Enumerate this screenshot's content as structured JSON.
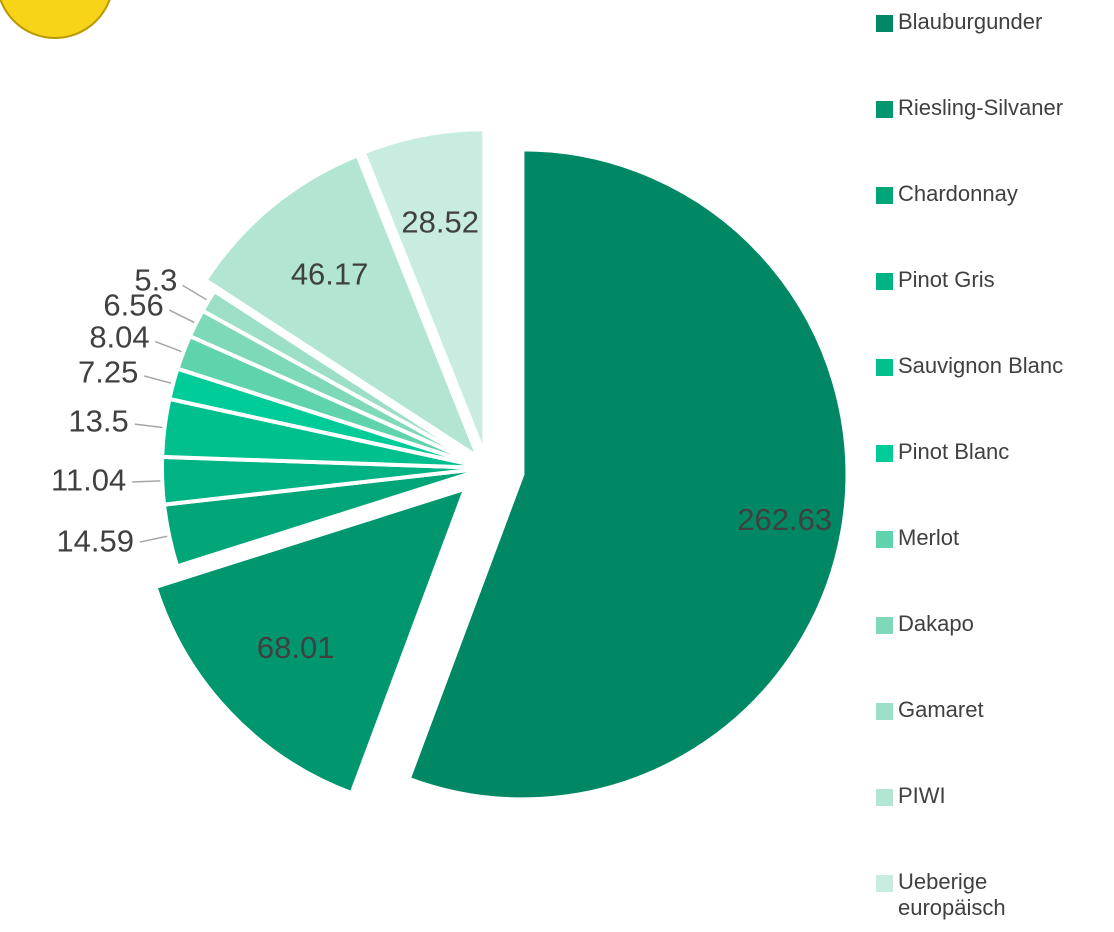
{
  "chart_data": {
    "type": "pie",
    "categories": [
      "Blauburgunder",
      "Riesling-Silvaner",
      "Chardonnay",
      "Pinot Gris",
      "Sauvignon Blanc",
      "Pinot Blanc",
      "Merlot",
      "Dakapo",
      "Gamaret",
      "PIWI",
      "Ueberige europäisch"
    ],
    "values": [
      262.63,
      68.01,
      14.59,
      11.04,
      13.5,
      7.25,
      8.04,
      6.56,
      5.3,
      46.17,
      28.52
    ],
    "colors": [
      "#008864",
      "#00966e",
      "#00a578",
      "#00b384",
      "#00c08d",
      "#00cc99",
      "#5fd3ab",
      "#7dd9b8",
      "#9be0c6",
      "#b3e6d2",
      "#c8ecdf"
    ],
    "legend": "right"
  }
}
